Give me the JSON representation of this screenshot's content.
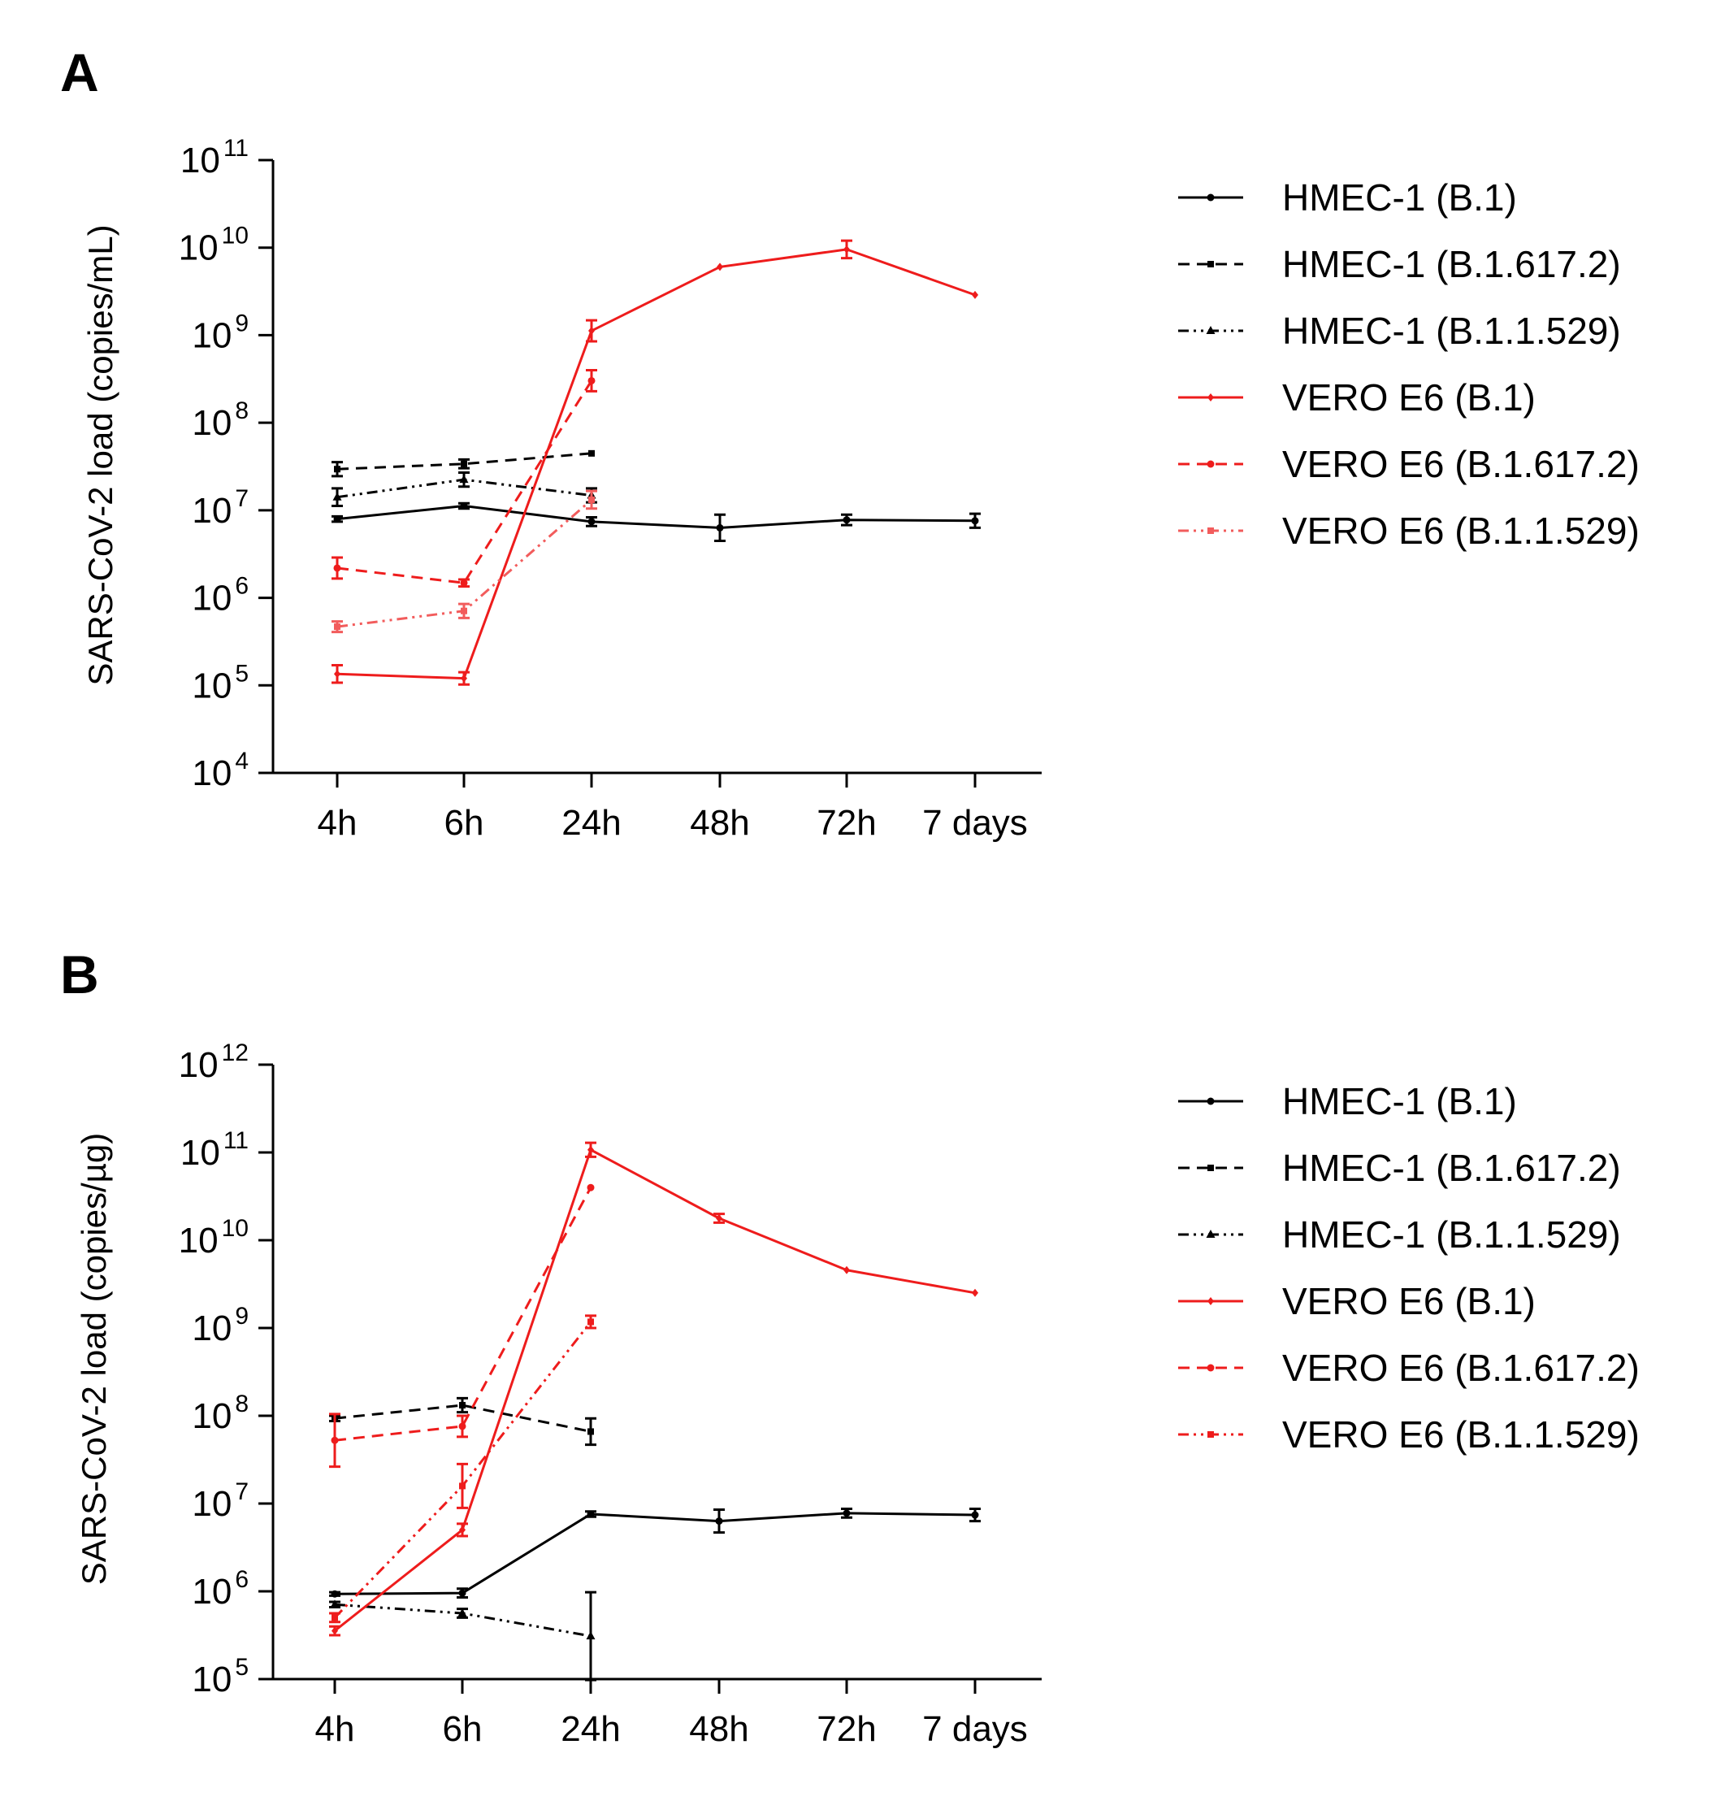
{
  "chart_data": [
    {
      "panel": "A",
      "type": "line",
      "ylabel": "SARS-CoV-2 load (copies/mL)",
      "xlabel": "",
      "yscale": "log10",
      "ylim_log10": [
        4,
        11
      ],
      "y_ticks": [
        {
          "base": "10",
          "exp": "4"
        },
        {
          "base": "10",
          "exp": "5"
        },
        {
          "base": "10",
          "exp": "6"
        },
        {
          "base": "10",
          "exp": "7"
        },
        {
          "base": "10",
          "exp": "8"
        },
        {
          "base": "10",
          "exp": "9"
        },
        {
          "base": "10",
          "exp": "10"
        },
        {
          "base": "10",
          "exp": "11"
        }
      ],
      "categories": [
        "4h",
        "6h",
        "24h",
        "48h",
        "72h",
        "7 days"
      ],
      "series": [
        {
          "name": "HMEC-1 (B.1)",
          "color": "#000000",
          "dash": "solid",
          "marker": "circle",
          "log10_values": [
            6.9,
            7.05,
            6.87,
            6.8,
            6.89,
            6.88
          ],
          "error_log10": [
            0.03,
            0.03,
            0.05,
            0.15,
            0.06,
            0.08
          ]
        },
        {
          "name": "HMEC-1 (B.1.617.2)",
          "color": "#000000",
          "dash": "dashed",
          "marker": "square",
          "log10_values": [
            7.47,
            7.53,
            7.65,
            null,
            null,
            null
          ],
          "error_log10": [
            0.08,
            0.05,
            0.0,
            null,
            null,
            null
          ]
        },
        {
          "name": "HMEC-1 (B.1.1.529)",
          "color": "#000000",
          "dash": "dashdotdot",
          "marker": "triangle",
          "log10_values": [
            7.15,
            7.35,
            7.17,
            null,
            null,
            null
          ],
          "error_log10": [
            0.1,
            0.08,
            0.08,
            null,
            null,
            null
          ]
        },
        {
          "name": "VERO E6 (B.1)",
          "color": "#ee1c1c",
          "dash": "solid",
          "marker": "diamond",
          "log10_values": [
            5.13,
            5.08,
            9.05,
            9.78,
            9.98,
            9.46
          ],
          "error_log10": [
            0.1,
            0.07,
            0.12,
            0.0,
            0.1,
            0.0
          ]
        },
        {
          "name": "VERO E6 (B.1.617.2)",
          "color": "#ee1c1c",
          "dash": "dashed",
          "marker": "circle",
          "log10_values": [
            6.34,
            6.17,
            8.48,
            null,
            null,
            null
          ],
          "error_log10": [
            0.12,
            0.04,
            0.12,
            null,
            null,
            null
          ]
        },
        {
          "name": "VERO E6 (B.1.1.529)",
          "color": "#f25c5c",
          "dash": "dashdotdot",
          "marker": "square",
          "log10_values": [
            5.67,
            5.85,
            7.12,
            null,
            null,
            null
          ],
          "error_log10": [
            0.06,
            0.08,
            0.1,
            null,
            null,
            null
          ]
        }
      ]
    },
    {
      "panel": "B",
      "type": "line",
      "ylabel": "SARS-CoV-2 load (copies/µg)",
      "xlabel": "",
      "yscale": "log10",
      "ylim_log10": [
        5,
        12
      ],
      "y_ticks": [
        {
          "base": "10",
          "exp": "5"
        },
        {
          "base": "10",
          "exp": "6"
        },
        {
          "base": "10",
          "exp": "7"
        },
        {
          "base": "10",
          "exp": "8"
        },
        {
          "base": "10",
          "exp": "9"
        },
        {
          "base": "10",
          "exp": "10"
        },
        {
          "base": "10",
          "exp": "11"
        },
        {
          "base": "10",
          "exp": "12"
        }
      ],
      "categories": [
        "4h",
        "6h",
        "24h",
        "48h",
        "72h",
        "7 days"
      ],
      "series": [
        {
          "name": "HMEC-1 (B.1)",
          "color": "#000000",
          "dash": "solid",
          "marker": "circle",
          "log10_values": [
            5.97,
            5.98,
            6.88,
            6.8,
            6.89,
            6.87
          ],
          "error_log10": [
            0.02,
            0.05,
            0.03,
            0.13,
            0.05,
            0.07
          ]
        },
        {
          "name": "HMEC-1 (B.1.617.2)",
          "color": "#000000",
          "dash": "dashed",
          "marker": "square",
          "log10_values": [
            7.97,
            8.12,
            7.82,
            null,
            null,
            null
          ],
          "error_log10": [
            0.03,
            0.08,
            0.15,
            null,
            null,
            null
          ]
        },
        {
          "name": "HMEC-1 (B.1.1.529)",
          "color": "#000000",
          "dash": "dashdotdot",
          "marker": "triangle",
          "log10_values": [
            5.85,
            5.75,
            5.49,
            null,
            null,
            null
          ],
          "error_log10": [
            0.03,
            0.05,
            0.5,
            null,
            null,
            null
          ]
        },
        {
          "name": "VERO E6 (B.1)",
          "color": "#ee1c1c",
          "dash": "solid",
          "marker": "diamond",
          "log10_values": [
            5.55,
            6.7,
            11.03,
            10.25,
            9.66,
            9.4
          ],
          "error_log10": [
            0.05,
            0.07,
            0.08,
            0.05,
            0.0,
            0.0
          ]
        },
        {
          "name": "VERO E6 (B.1.617.2)",
          "color": "#ee1c1c",
          "dash": "dashed",
          "marker": "circle",
          "log10_values": [
            7.72,
            7.88,
            10.6,
            null,
            null,
            null
          ],
          "error_log10": [
            0.3,
            0.12,
            0.0,
            null,
            null,
            null
          ]
        },
        {
          "name": "VERO E6 (B.1.1.529)",
          "color": "#ee1c1c",
          "dash": "dashdotdot",
          "marker": "square",
          "log10_values": [
            5.7,
            7.2,
            9.07,
            null,
            null,
            null
          ],
          "error_log10": [
            0.05,
            0.25,
            0.07,
            null,
            null,
            null
          ]
        }
      ]
    }
  ]
}
